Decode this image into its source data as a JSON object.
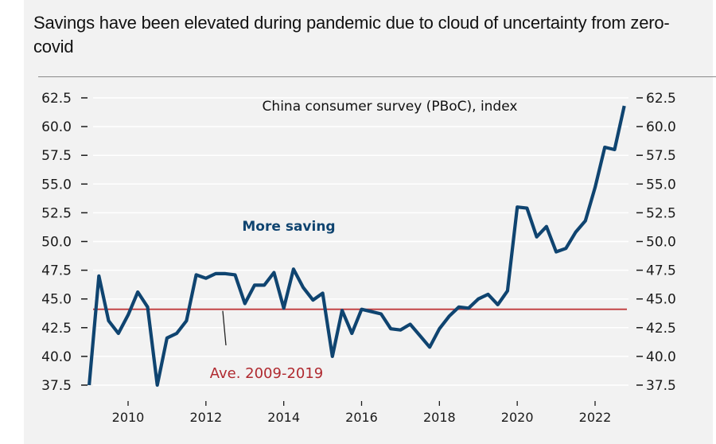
{
  "title": "Savings have been elevated during pandemic due to cloud of uncertainty from zero-covid",
  "colors": {
    "background": "#f2f2f2",
    "line": "#0f4470",
    "average_line": "#c0393b",
    "more_saving_label": "#0f4470",
    "average_label": "#b02a30",
    "gridline": "#ffffff"
  },
  "chart_data": {
    "type": "line",
    "title": "Savings have been elevated during pandemic due to cloud of uncertainty from zero-covid",
    "series_label": "China consumer survey (PBoC), index",
    "xlabel": "",
    "ylabel": "",
    "ylim": [
      37.5,
      62.5
    ],
    "xlim": [
      2009.0,
      2023.1
    ],
    "y_ticks": [
      "62.5",
      "60.0",
      "57.5",
      "55.0",
      "52.5",
      "50.0",
      "47.5",
      "45.0",
      "42.5",
      "40.0",
      "37.5"
    ],
    "y_tick_values": [
      62.5,
      60.0,
      57.5,
      55.0,
      52.5,
      50.0,
      47.5,
      45.0,
      42.5,
      40.0,
      37.5
    ],
    "x_ticks": [
      "2010",
      "2012",
      "2014",
      "2016",
      "2018",
      "2020",
      "2022"
    ],
    "x_tick_values": [
      2010,
      2012,
      2014,
      2016,
      2018,
      2020,
      2022
    ],
    "grid": true,
    "legend": "none",
    "annotations": [
      {
        "text": "China consumer survey (PBoC), index",
        "position": "top-center"
      },
      {
        "text": "More saving",
        "position": "middle-left"
      },
      {
        "text": "Ave. 2009-2019",
        "position": "bottom-left"
      }
    ],
    "average": {
      "label": "Ave. 2009-2019",
      "value": 44.1
    },
    "series": [
      {
        "name": "China consumer survey (PBoC), index",
        "x": [
          2009.0,
          2009.25,
          2009.5,
          2009.75,
          2010.0,
          2010.25,
          2010.5,
          2010.75,
          2011.0,
          2011.25,
          2011.5,
          2011.75,
          2012.0,
          2012.25,
          2012.5,
          2012.75,
          2013.0,
          2013.25,
          2013.5,
          2013.75,
          2014.0,
          2014.25,
          2014.5,
          2014.75,
          2015.0,
          2015.25,
          2015.5,
          2015.75,
          2016.0,
          2016.25,
          2016.5,
          2016.75,
          2017.0,
          2017.25,
          2017.5,
          2017.75,
          2018.0,
          2018.25,
          2018.5,
          2018.75,
          2019.0,
          2019.25,
          2019.5,
          2019.75,
          2020.0,
          2020.25,
          2020.5,
          2020.75,
          2021.0,
          2021.25,
          2021.5,
          2021.75,
          2022.0,
          2022.25,
          2022.5,
          2022.75
        ],
        "values": [
          37.5,
          47.0,
          43.1,
          42.0,
          43.6,
          45.6,
          44.3,
          37.5,
          41.6,
          42.0,
          43.1,
          47.1,
          46.8,
          47.2,
          47.2,
          47.1,
          44.6,
          46.2,
          46.2,
          47.3,
          44.2,
          47.6,
          46.0,
          44.9,
          45.5,
          40.0,
          44.0,
          42.0,
          44.1,
          43.9,
          43.7,
          42.4,
          42.3,
          42.8,
          41.8,
          40.8,
          42.4,
          43.5,
          44.3,
          44.2,
          45.0,
          45.4,
          44.5,
          45.7,
          53.0,
          52.9,
          50.4,
          51.3,
          49.1,
          49.4,
          50.8,
          51.8,
          54.7,
          58.2,
          58.0,
          61.8
        ]
      }
    ]
  }
}
